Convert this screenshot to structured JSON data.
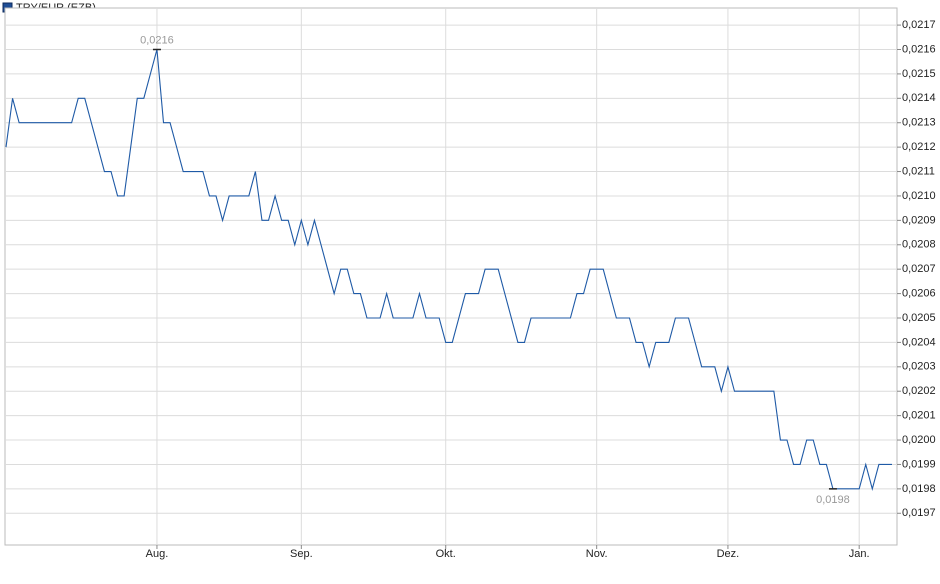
{
  "chart_data": {
    "type": "line",
    "name": "TRY/EUR (EZB)",
    "color": "#1f5aa6",
    "categories": [
      null,
      null,
      null,
      null,
      null,
      null,
      null,
      null,
      null,
      null,
      null,
      null,
      null,
      null,
      null,
      null,
      null,
      null,
      null,
      null,
      null,
      null,
      null,
      "Aug.",
      null,
      null,
      null,
      null,
      null,
      null,
      null,
      null,
      null,
      null,
      null,
      null,
      null,
      null,
      null,
      null,
      null,
      null,
      null,
      null,
      null,
      "Sep.",
      null,
      null,
      null,
      null,
      null,
      null,
      null,
      null,
      null,
      null,
      null,
      null,
      null,
      null,
      null,
      null,
      null,
      null,
      null,
      null,
      null,
      "Okt.",
      null,
      null,
      null,
      null,
      null,
      null,
      null,
      null,
      null,
      null,
      null,
      null,
      null,
      null,
      null,
      null,
      null,
      null,
      null,
      null,
      null,
      null,
      "Nov.",
      null,
      null,
      null,
      null,
      null,
      null,
      null,
      null,
      null,
      null,
      null,
      null,
      null,
      null,
      null,
      null,
      null,
      null,
      null,
      "Dez.",
      null,
      null,
      null,
      null,
      null,
      null,
      null,
      null,
      null,
      null,
      null,
      null,
      null,
      null,
      null,
      null,
      null,
      null,
      null,
      "Jan.",
      null,
      null,
      null,
      null,
      null
    ],
    "values": [
      0.0212,
      0.0214,
      0.0213,
      0.0213,
      0.0213,
      0.0213,
      0.0213,
      0.0213,
      0.0213,
      0.0213,
      0.0213,
      0.0214,
      0.0214,
      0.0213,
      0.0212,
      0.0211,
      0.0211,
      0.021,
      0.021,
      0.0212,
      0.0214,
      0.0214,
      0.0215,
      0.0216,
      0.0213,
      0.0213,
      0.0212,
      0.0211,
      0.0211,
      0.0211,
      0.0211,
      0.021,
      0.021,
      0.0209,
      0.021,
      0.021,
      0.021,
      0.021,
      0.0211,
      0.0209,
      0.0209,
      0.021,
      0.0209,
      0.0209,
      0.0208,
      0.0209,
      0.0208,
      0.0209,
      0.0208,
      0.0207,
      0.0206,
      0.0207,
      0.0207,
      0.0206,
      0.0206,
      0.0205,
      0.0205,
      0.0205,
      0.0206,
      0.0205,
      0.0205,
      0.0205,
      0.0205,
      0.0206,
      0.0205,
      0.0205,
      0.0205,
      0.0204,
      0.0204,
      0.0205,
      0.0206,
      0.0206,
      0.0206,
      0.0207,
      0.0207,
      0.0207,
      0.0206,
      0.0205,
      0.0204,
      0.0204,
      0.0205,
      0.0205,
      0.0205,
      0.0205,
      0.0205,
      0.0205,
      0.0205,
      0.0206,
      0.0206,
      0.0207,
      0.0207,
      0.0207,
      0.0206,
      0.0205,
      0.0205,
      0.0205,
      0.0204,
      0.0204,
      0.0203,
      0.0204,
      0.0204,
      0.0204,
      0.0205,
      0.0205,
      0.0205,
      0.0204,
      0.0203,
      0.0203,
      0.0203,
      0.0202,
      0.0203,
      0.0202,
      0.0202,
      0.0202,
      0.0202,
      0.0202,
      0.0202,
      0.0202,
      0.02,
      0.02,
      0.0199,
      0.0199,
      0.02,
      0.02,
      0.0199,
      0.0199,
      0.0198,
      0.0198,
      0.0198,
      0.0198,
      0.0198,
      0.0199,
      0.0198,
      0.0199,
      0.0199,
      0.0199
    ],
    "value_labels": [
      null,
      null,
      null,
      null,
      null,
      null,
      null,
      null,
      null,
      null,
      null,
      null,
      null,
      null,
      null,
      null,
      null,
      null,
      null,
      null,
      null,
      null,
      null,
      "0,0216",
      null,
      null,
      null,
      null,
      null,
      null,
      null,
      null,
      null,
      null,
      null,
      null,
      null,
      null,
      null,
      null,
      null,
      null,
      null,
      null,
      null,
      null,
      null,
      null,
      null,
      null,
      null,
      null,
      null,
      null,
      null,
      null,
      null,
      null,
      null,
      null,
      null,
      null,
      null,
      null,
      null,
      null,
      null,
      null,
      null,
      null,
      null,
      null,
      null,
      null,
      null,
      null,
      null,
      null,
      null,
      null,
      null,
      null,
      null,
      null,
      null,
      null,
      null,
      null,
      null,
      null,
      null,
      null,
      null,
      null,
      null,
      null,
      null,
      null,
      null,
      null,
      null,
      null,
      null,
      null,
      null,
      null,
      null,
      null,
      null,
      null,
      null,
      null,
      null,
      null,
      null,
      null,
      null,
      null,
      null,
      null,
      null,
      null,
      null,
      null,
      null,
      null,
      "0,0198",
      null,
      null,
      null,
      null,
      null,
      null,
      null,
      null,
      null
    ],
    "ylim": [
      0.01957,
      0.02177
    ],
    "yticks": [
      {
        "value": 0.0197,
        "label": "0,0197"
      },
      {
        "value": 0.0198,
        "label": "0,0198"
      },
      {
        "value": 0.0199,
        "label": "0,0199"
      },
      {
        "value": 0.02,
        "label": "0,0200"
      },
      {
        "value": 0.0201,
        "label": "0,0201"
      },
      {
        "value": 0.0202,
        "label": "0,0202"
      },
      {
        "value": 0.0203,
        "label": "0,0203"
      },
      {
        "value": 0.0204,
        "label": "0,0204"
      },
      {
        "value": 0.0205,
        "label": "0,0205"
      },
      {
        "value": 0.0206,
        "label": "0,0206"
      },
      {
        "value": 0.0207,
        "label": "0,0207"
      },
      {
        "value": 0.0208,
        "label": "0,0208"
      },
      {
        "value": 0.0209,
        "label": "0,0209"
      },
      {
        "value": 0.021,
        "label": "0,0210"
      },
      {
        "value": 0.0211,
        "label": "0,0211"
      },
      {
        "value": 0.0212,
        "label": "0,0212"
      },
      {
        "value": 0.0213,
        "label": "0,0213"
      },
      {
        "value": 0.0214,
        "label": "0,0214"
      },
      {
        "value": 0.0215,
        "label": "0,0215"
      },
      {
        "value": 0.0216,
        "label": "0,0216"
      },
      {
        "value": 0.0217,
        "label": "0,0217"
      }
    ],
    "grid": true
  }
}
